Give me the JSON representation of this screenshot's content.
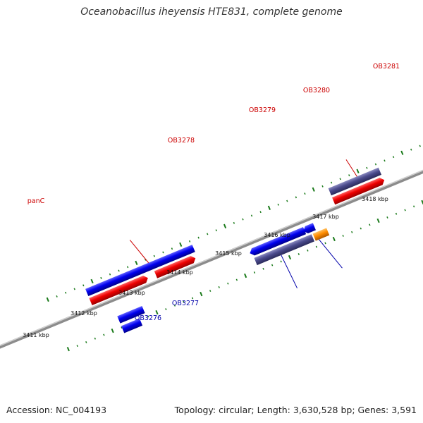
{
  "header": {
    "title": "Oceanobacillus iheyensis HTE831, complete genome"
  },
  "footer": {
    "accession": "Accession: NC_004193",
    "summary": "Topology: circular; Length: 3,630,528 bp; Genes: 3,591"
  },
  "colors": {
    "forward_cds": "#ee0000",
    "blue_gene": "#0000ee",
    "slate_gene": "#4a4a8c",
    "cyan_gene": "#00e5ee",
    "orange_gene": "#ff8c00",
    "gray_gene": "#666666",
    "backbone": "#909090",
    "tick": "#1a7a1a",
    "label_red": "#cc0000",
    "label_blue": "#0000aa"
  },
  "map": {
    "scale_labels": [
      "3411 kbp",
      "3412 kbp",
      "3413 kbp",
      "3414 kbp",
      "3415 kbp",
      "3416 kbp",
      "3417 kbp",
      "3418 kbp"
    ],
    "gene_labels": [
      {
        "text": "panC",
        "strand": "forward"
      },
      {
        "text": "OB3278",
        "strand": "forward"
      },
      {
        "text": "OB3279",
        "strand": "forward"
      },
      {
        "text": "OB3280",
        "strand": "forward"
      },
      {
        "text": "OB3281",
        "strand": "forward"
      },
      {
        "text": "OB3276",
        "strand": "reverse"
      },
      {
        "text": "OB3277",
        "strand": "reverse"
      }
    ]
  }
}
